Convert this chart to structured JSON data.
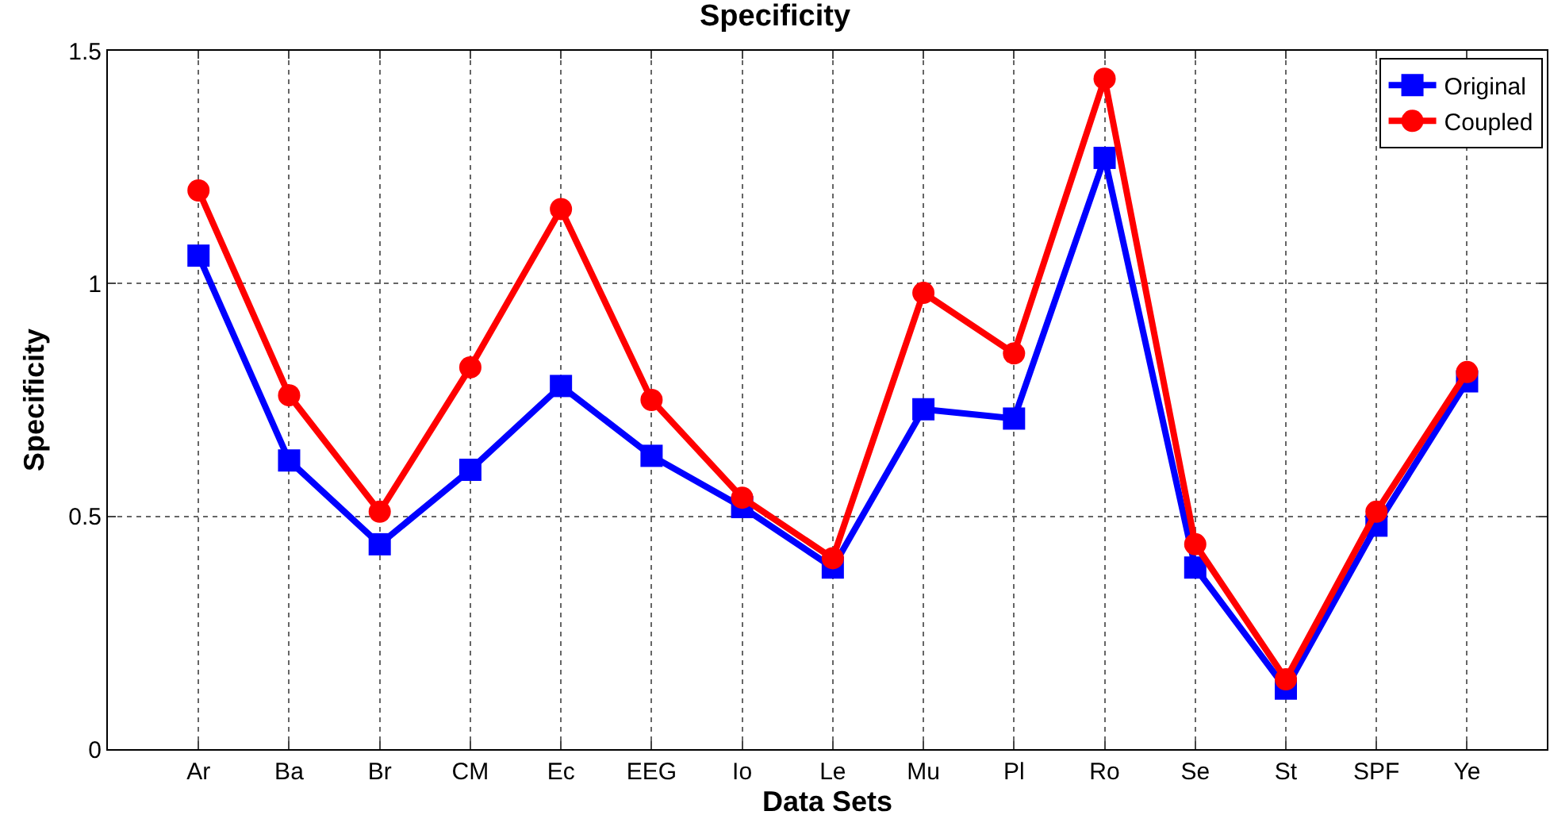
{
  "chart_data": {
    "type": "line",
    "title": "Specificity",
    "xlabel": "Data Sets",
    "ylabel": "Specificity",
    "categories": [
      "Ar",
      "Ba",
      "Br",
      "CM",
      "Ec",
      "EEG",
      "Io",
      "Le",
      "Mu",
      "Pl",
      "Ro",
      "Se",
      "St",
      "SPF",
      "Ye"
    ],
    "series": [
      {
        "name": "Original",
        "color": "#0000ff",
        "marker": "square",
        "values": [
          1.06,
          0.62,
          0.44,
          0.6,
          0.78,
          0.63,
          0.52,
          0.39,
          0.73,
          0.71,
          1.27,
          0.39,
          0.13,
          0.48,
          0.79
        ]
      },
      {
        "name": "Coupled",
        "color": "#ff0000",
        "marker": "circle",
        "values": [
          1.2,
          0.76,
          0.51,
          0.82,
          1.16,
          0.75,
          0.54,
          0.41,
          0.98,
          0.85,
          1.44,
          0.44,
          0.15,
          0.51,
          0.81
        ]
      }
    ],
    "ylim": [
      0,
      1.5
    ],
    "yticks": [
      0,
      0.5,
      1,
      1.5
    ],
    "grid": true,
    "legend": "top right",
    "line_style": "solid"
  }
}
